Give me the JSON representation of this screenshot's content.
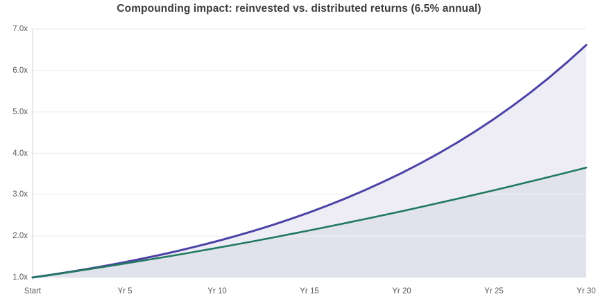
{
  "chart_data": {
    "type": "area",
    "title": "Compounding impact: reinvested vs. distributed returns (6.5% annual)",
    "annual_rate_label": "6.5% annual",
    "xlabel": "",
    "ylabel": "",
    "xlim": [
      0,
      30
    ],
    "ylim": [
      1,
      7
    ],
    "grid": true,
    "legend": "none",
    "x": [
      0,
      1,
      2,
      3,
      4,
      5,
      6,
      7,
      8,
      9,
      10,
      11,
      12,
      13,
      14,
      15,
      16,
      17,
      18,
      19,
      20,
      21,
      22,
      23,
      24,
      25,
      26,
      27,
      28,
      29,
      30
    ],
    "series": [
      {
        "name": "reinvested",
        "line_color": "#4c43a6",
        "area_color": "rgba(86,78,170,0.10)",
        "line_width": 3,
        "values": [
          1.0,
          1.065,
          1.134,
          1.208,
          1.286,
          1.37,
          1.459,
          1.554,
          1.655,
          1.763,
          1.877,
          1.999,
          2.129,
          2.267,
          2.415,
          2.572,
          2.739,
          2.917,
          3.107,
          3.309,
          3.524,
          3.753,
          3.997,
          4.256,
          4.533,
          4.828,
          5.141,
          5.476,
          5.832,
          6.211,
          6.614
        ]
      },
      {
        "name": "distributed",
        "line_color": "#20795f",
        "area_color": "rgba(70,100,130,0.08)",
        "line_width": 2.6,
        "values": [
          1.0,
          1.064,
          1.129,
          1.197,
          1.266,
          1.336,
          1.409,
          1.483,
          1.558,
          1.636,
          1.715,
          1.796,
          1.878,
          1.963,
          2.049,
          2.136,
          2.226,
          2.317,
          2.41,
          2.504,
          2.6,
          2.698,
          2.798,
          2.899,
          3.002,
          3.106,
          3.213,
          3.321,
          3.43,
          3.541,
          3.654
        ]
      }
    ],
    "x_ticks": [
      {
        "x": 0,
        "label": "Start"
      },
      {
        "x": 5,
        "label": "Yr 5"
      },
      {
        "x": 10,
        "label": "Yr 10"
      },
      {
        "x": 15,
        "label": "Yr 15"
      },
      {
        "x": 20,
        "label": "Yr 20"
      },
      {
        "x": 25,
        "label": "Yr 25"
      },
      {
        "x": 30,
        "label": "Yr 30"
      }
    ],
    "y_ticks": [
      {
        "v": 1,
        "label": "1.0x"
      },
      {
        "v": 2,
        "label": "2.0x"
      },
      {
        "v": 3,
        "label": "3.0x"
      },
      {
        "v": 4,
        "label": "4.0x"
      },
      {
        "v": 5,
        "label": "5.0x"
      },
      {
        "v": 6,
        "label": "6.0x"
      },
      {
        "v": 7,
        "label": "7.0x"
      }
    ],
    "colors": {
      "grid": "#f0f0f0",
      "axis": "#e0e0e0",
      "title_text": "#3d3d3d",
      "tick_text": "#595959",
      "background": "#ffffff"
    }
  }
}
